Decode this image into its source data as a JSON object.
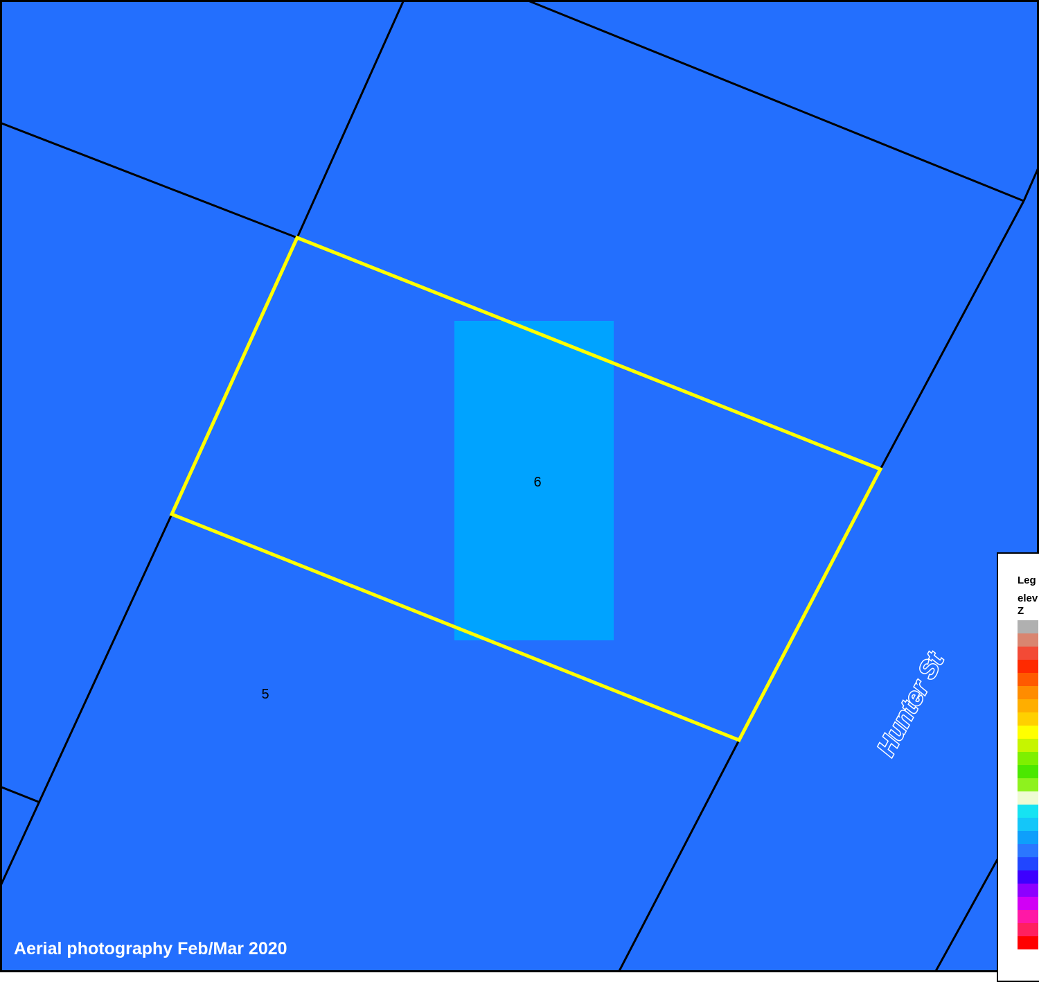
{
  "map": {
    "background_color": "#236ffe",
    "highlight_color": "#00a3ff",
    "parcel_line_color": "#000000",
    "selected_outline_color": "#ffff00",
    "parcel_labels": [
      "6",
      "5"
    ],
    "street_name": "Hunter St",
    "credit": "Aerial photography Feb/Mar 2020"
  },
  "legend": {
    "title": "Leg",
    "layer": "elev",
    "field": "Z",
    "colors": [
      "#b0b0b0",
      "#d98570",
      "#f34a36",
      "#ff2a00",
      "#ff5a00",
      "#ff8c00",
      "#ffae00",
      "#ffd000",
      "#ffff00",
      "#c6f500",
      "#7ef000",
      "#4be800",
      "#8ef21e",
      "#eefbd2",
      "#16e3f2",
      "#14c6f9",
      "#0e9ffb",
      "#2b77ff",
      "#2146ff",
      "#3d00ff",
      "#8d00ff",
      "#d100f5",
      "#ff18a6",
      "#ff2060",
      "#ff0000"
    ]
  }
}
